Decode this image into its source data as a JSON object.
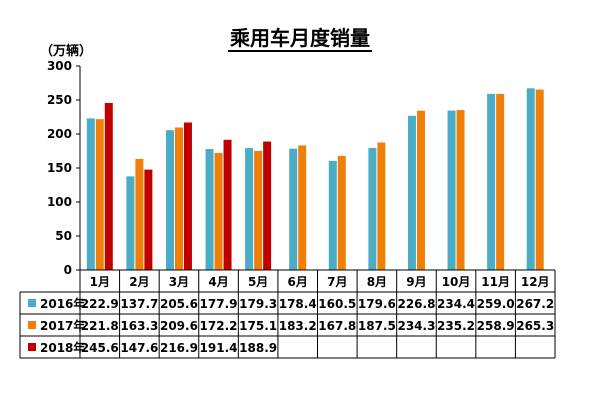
{
  "chart_data": {
    "type": "bar",
    "title": "乘用车月度销量",
    "ylabel": "（万辆）",
    "ylim": [
      0,
      300
    ],
    "yticks": [
      0,
      50,
      100,
      150,
      200,
      250,
      300
    ],
    "grid": false,
    "legend": "table-left",
    "categories": [
      "1月",
      "2月",
      "3月",
      "4月",
      "5月",
      "6月",
      "7月",
      "8月",
      "9月",
      "10月",
      "11月",
      "12月"
    ],
    "series": [
      {
        "name": "2016年",
        "color": "#4bacc6",
        "values": [
          222.9,
          137.7,
          205.6,
          177.9,
          179.3,
          178.4,
          160.5,
          179.6,
          226.8,
          234.4,
          259.0,
          267.2
        ],
        "labels": [
          "222.9",
          "137.7",
          "205.6",
          "177.9",
          "179.3",
          "178.4",
          "160.5",
          "179.6",
          "226.8",
          "234.4",
          "259.0",
          "267.2"
        ]
      },
      {
        "name": "2017年",
        "color": "#f07f09",
        "values": [
          221.8,
          163.3,
          209.6,
          172.2,
          175.1,
          183.2,
          167.8,
          187.5,
          234.3,
          235.2,
          258.9,
          265.3
        ],
        "labels": [
          "221.8",
          "163.3",
          "209.6",
          "172.2",
          "175.1",
          "183.2",
          "167.8",
          "187.5",
          "234.3",
          "235.2",
          "258.9",
          "265.3"
        ]
      },
      {
        "name": "2018年",
        "color": "#c00000",
        "values": [
          245.6,
          147.6,
          216.9,
          191.4,
          188.9,
          null,
          null,
          null,
          null,
          null,
          null,
          null
        ],
        "labels": [
          "245.6",
          "147.6",
          "216.9",
          "191.4",
          "188.9",
          "",
          "",
          "",
          "",
          "",
          "",
          ""
        ]
      }
    ]
  }
}
